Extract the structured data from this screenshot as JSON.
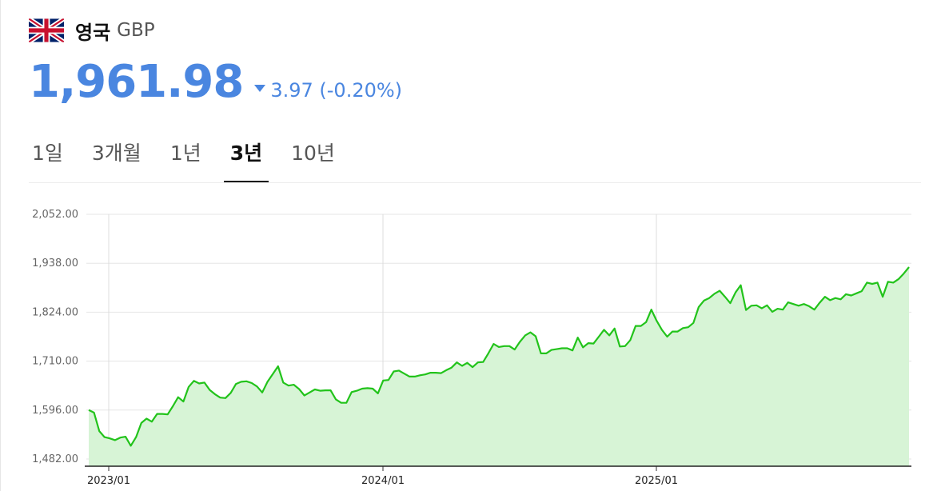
{
  "header": {
    "country": "영국",
    "currency": "GBP",
    "flag_icon": "uk-flag-icon"
  },
  "price": {
    "value": "1,961.98",
    "change": "3.97 (-0.20%)",
    "direction": "down",
    "color": "#4a86e0"
  },
  "tabs": [
    {
      "label": "1일",
      "active": false
    },
    {
      "label": "3개월",
      "active": false
    },
    {
      "label": "1년",
      "active": false
    },
    {
      "label": "3년",
      "active": true
    },
    {
      "label": "10년",
      "active": false
    }
  ],
  "chart_data": {
    "type": "area",
    "title": "",
    "xlabel": "",
    "ylabel": "",
    "y_ticks": [
      "2,052.00",
      "1,938.00",
      "1,824.00",
      "1,710.00",
      "1,596.00",
      "1,482.00"
    ],
    "x_ticks": [
      "2023/01",
      "2024/01",
      "2025/01"
    ],
    "ylim": [
      1482,
      2052
    ],
    "grid": true,
    "line_color": "#22c31b",
    "fill_color": "#d7f4d6",
    "series": [
      {
        "values": [
          1596,
          1590,
          1547,
          1533,
          1530,
          1526,
          1532,
          1534,
          1513,
          1533,
          1566,
          1576,
          1569,
          1587,
          1587,
          1586,
          1605,
          1626,
          1616,
          1650,
          1664,
          1658,
          1660,
          1643,
          1633,
          1625,
          1624,
          1636,
          1657,
          1662,
          1663,
          1659,
          1651,
          1637,
          1662,
          1680,
          1698,
          1660,
          1653,
          1655,
          1645,
          1630,
          1637,
          1644,
          1641,
          1642,
          1642,
          1621,
          1613,
          1613,
          1638,
          1641,
          1646,
          1647,
          1646,
          1635,
          1665,
          1666,
          1686,
          1688,
          1681,
          1674,
          1674,
          1677,
          1679,
          1683,
          1683,
          1682,
          1689,
          1695,
          1707,
          1699,
          1706,
          1696,
          1707,
          1708,
          1728,
          1750,
          1743,
          1745,
          1745,
          1737,
          1755,
          1770,
          1777,
          1768,
          1728,
          1728,
          1736,
          1738,
          1740,
          1740,
          1735,
          1765,
          1742,
          1752,
          1751,
          1767,
          1783,
          1770,
          1786,
          1744,
          1745,
          1759,
          1792,
          1792,
          1801,
          1830,
          1804,
          1783,
          1767,
          1779,
          1779,
          1787,
          1789,
          1799,
          1836,
          1851,
          1857,
          1867,
          1874,
          1860,
          1845,
          1870,
          1887,
          1829,
          1839,
          1840,
          1833,
          1840,
          1825,
          1832,
          1830,
          1847,
          1843,
          1839,
          1843,
          1838,
          1830,
          1846,
          1860,
          1852,
          1857,
          1854,
          1866,
          1863,
          1868,
          1873,
          1893,
          1890,
          1893,
          1860,
          1895,
          1893,
          1901,
          1914,
          1929
        ]
      }
    ]
  }
}
